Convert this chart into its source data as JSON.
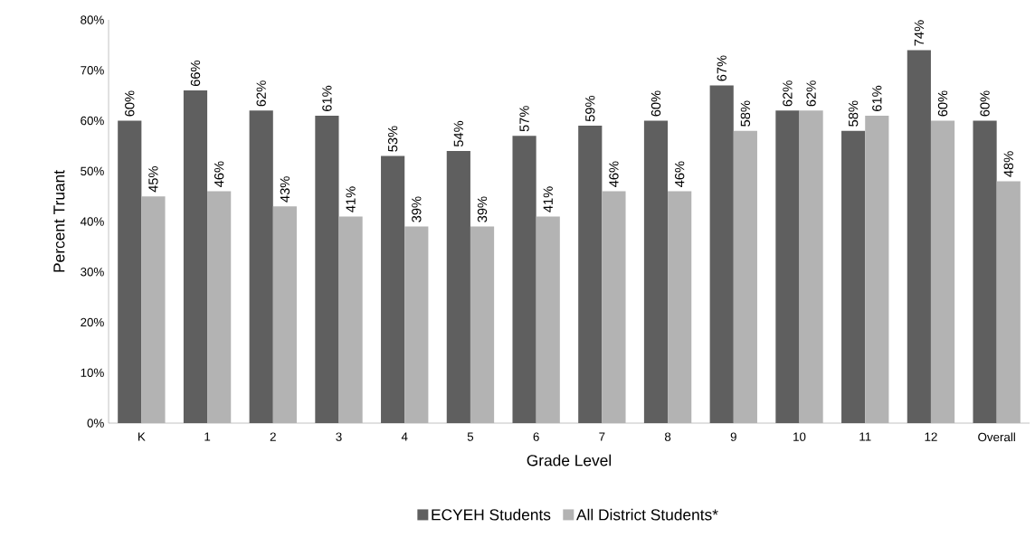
{
  "chart_data": {
    "type": "bar",
    "xlabel": "Grade Level",
    "ylabel": "Percent Truant",
    "categories": [
      "K",
      "1",
      "2",
      "3",
      "4",
      "5",
      "6",
      "7",
      "8",
      "9",
      "10",
      "11",
      "12",
      "Overall"
    ],
    "series": [
      {
        "name": "ECYEH Students",
        "color": "#5f5f5f",
        "values": [
          60,
          66,
          62,
          61,
          53,
          54,
          57,
          59,
          60,
          67,
          62,
          58,
          74,
          60
        ],
        "value_labels": [
          "60%",
          "66%",
          "62%",
          "61%",
          "53%",
          "54%",
          "57%",
          "59%",
          "60%",
          "67%",
          "62%",
          "58%",
          "74%",
          "60%"
        ]
      },
      {
        "name": "All District Students*",
        "color": "#b3b3b3",
        "values": [
          45,
          46,
          43,
          41,
          39,
          39,
          41,
          46,
          46,
          58,
          62,
          61,
          60,
          48
        ],
        "value_labels": [
          "45%",
          "46%",
          "43%",
          "41%",
          "39%",
          "39%",
          "41%",
          "46%",
          "46%",
          "58%",
          "62%",
          "61%",
          "60%",
          "48%"
        ]
      }
    ],
    "ylim": [
      0,
      80
    ],
    "yticks": [
      {
        "value": 0,
        "label": "0%"
      },
      {
        "value": 10,
        "label": "10%"
      },
      {
        "value": 20,
        "label": "20%"
      },
      {
        "value": 30,
        "label": "30%"
      },
      {
        "value": 40,
        "label": "40%"
      },
      {
        "value": 50,
        "label": "50%"
      },
      {
        "value": 60,
        "label": "60%"
      },
      {
        "value": 70,
        "label": "70%"
      },
      {
        "value": 80,
        "label": "80%"
      }
    ],
    "grid": false,
    "legend": "bottom"
  }
}
